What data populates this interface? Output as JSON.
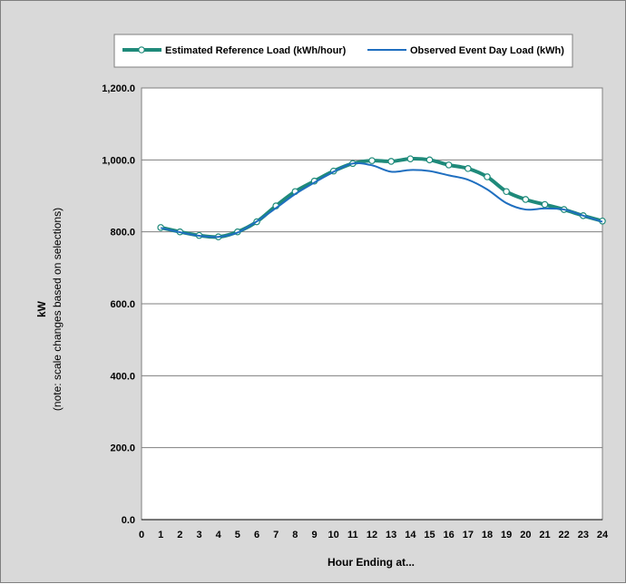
{
  "chart_data": {
    "type": "line",
    "x": [
      1,
      2,
      3,
      4,
      5,
      6,
      7,
      8,
      9,
      10,
      11,
      12,
      13,
      14,
      15,
      16,
      17,
      18,
      19,
      20,
      21,
      22,
      23,
      24
    ],
    "xticks": [
      "0",
      "1",
      "2",
      "3",
      "4",
      "5",
      "6",
      "7",
      "8",
      "9",
      "10",
      "11",
      "12",
      "13",
      "14",
      "15",
      "16",
      "17",
      "18",
      "19",
      "20",
      "21",
      "22",
      "23",
      "24"
    ],
    "xlim": [
      0,
      24
    ],
    "ylim": [
      0,
      1200
    ],
    "yticks": [
      "0.0",
      "200.0",
      "400.0",
      "600.0",
      "800.0",
      "1,000.0",
      "1,200.0"
    ],
    "xlabel": "Hour Ending at...",
    "ylabel": "kW",
    "ylabel_note": "(note: scale changes based on selections)",
    "grid": "horizontal",
    "legend_position": "top",
    "series": [
      {
        "name": "Estimated Reference Load (kWh/hour)",
        "color": "#1f8a7a",
        "marker": "circle",
        "values": [
          812,
          800,
          790,
          786,
          800,
          828,
          872,
          912,
          941,
          969,
          990,
          998,
          996,
          1003,
          1000,
          986,
          976,
          953,
          912,
          890,
          876,
          862,
          845,
          830
        ]
      },
      {
        "name": "Observed Event Day Load (kWh)",
        "color": "#1f6fc0",
        "marker": "none",
        "values": [
          811,
          799,
          789,
          786,
          798,
          829,
          866,
          905,
          937,
          967,
          990,
          985,
          967,
          972,
          969,
          957,
          945,
          918,
          880,
          862,
          865,
          862,
          845,
          828
        ]
      }
    ]
  }
}
